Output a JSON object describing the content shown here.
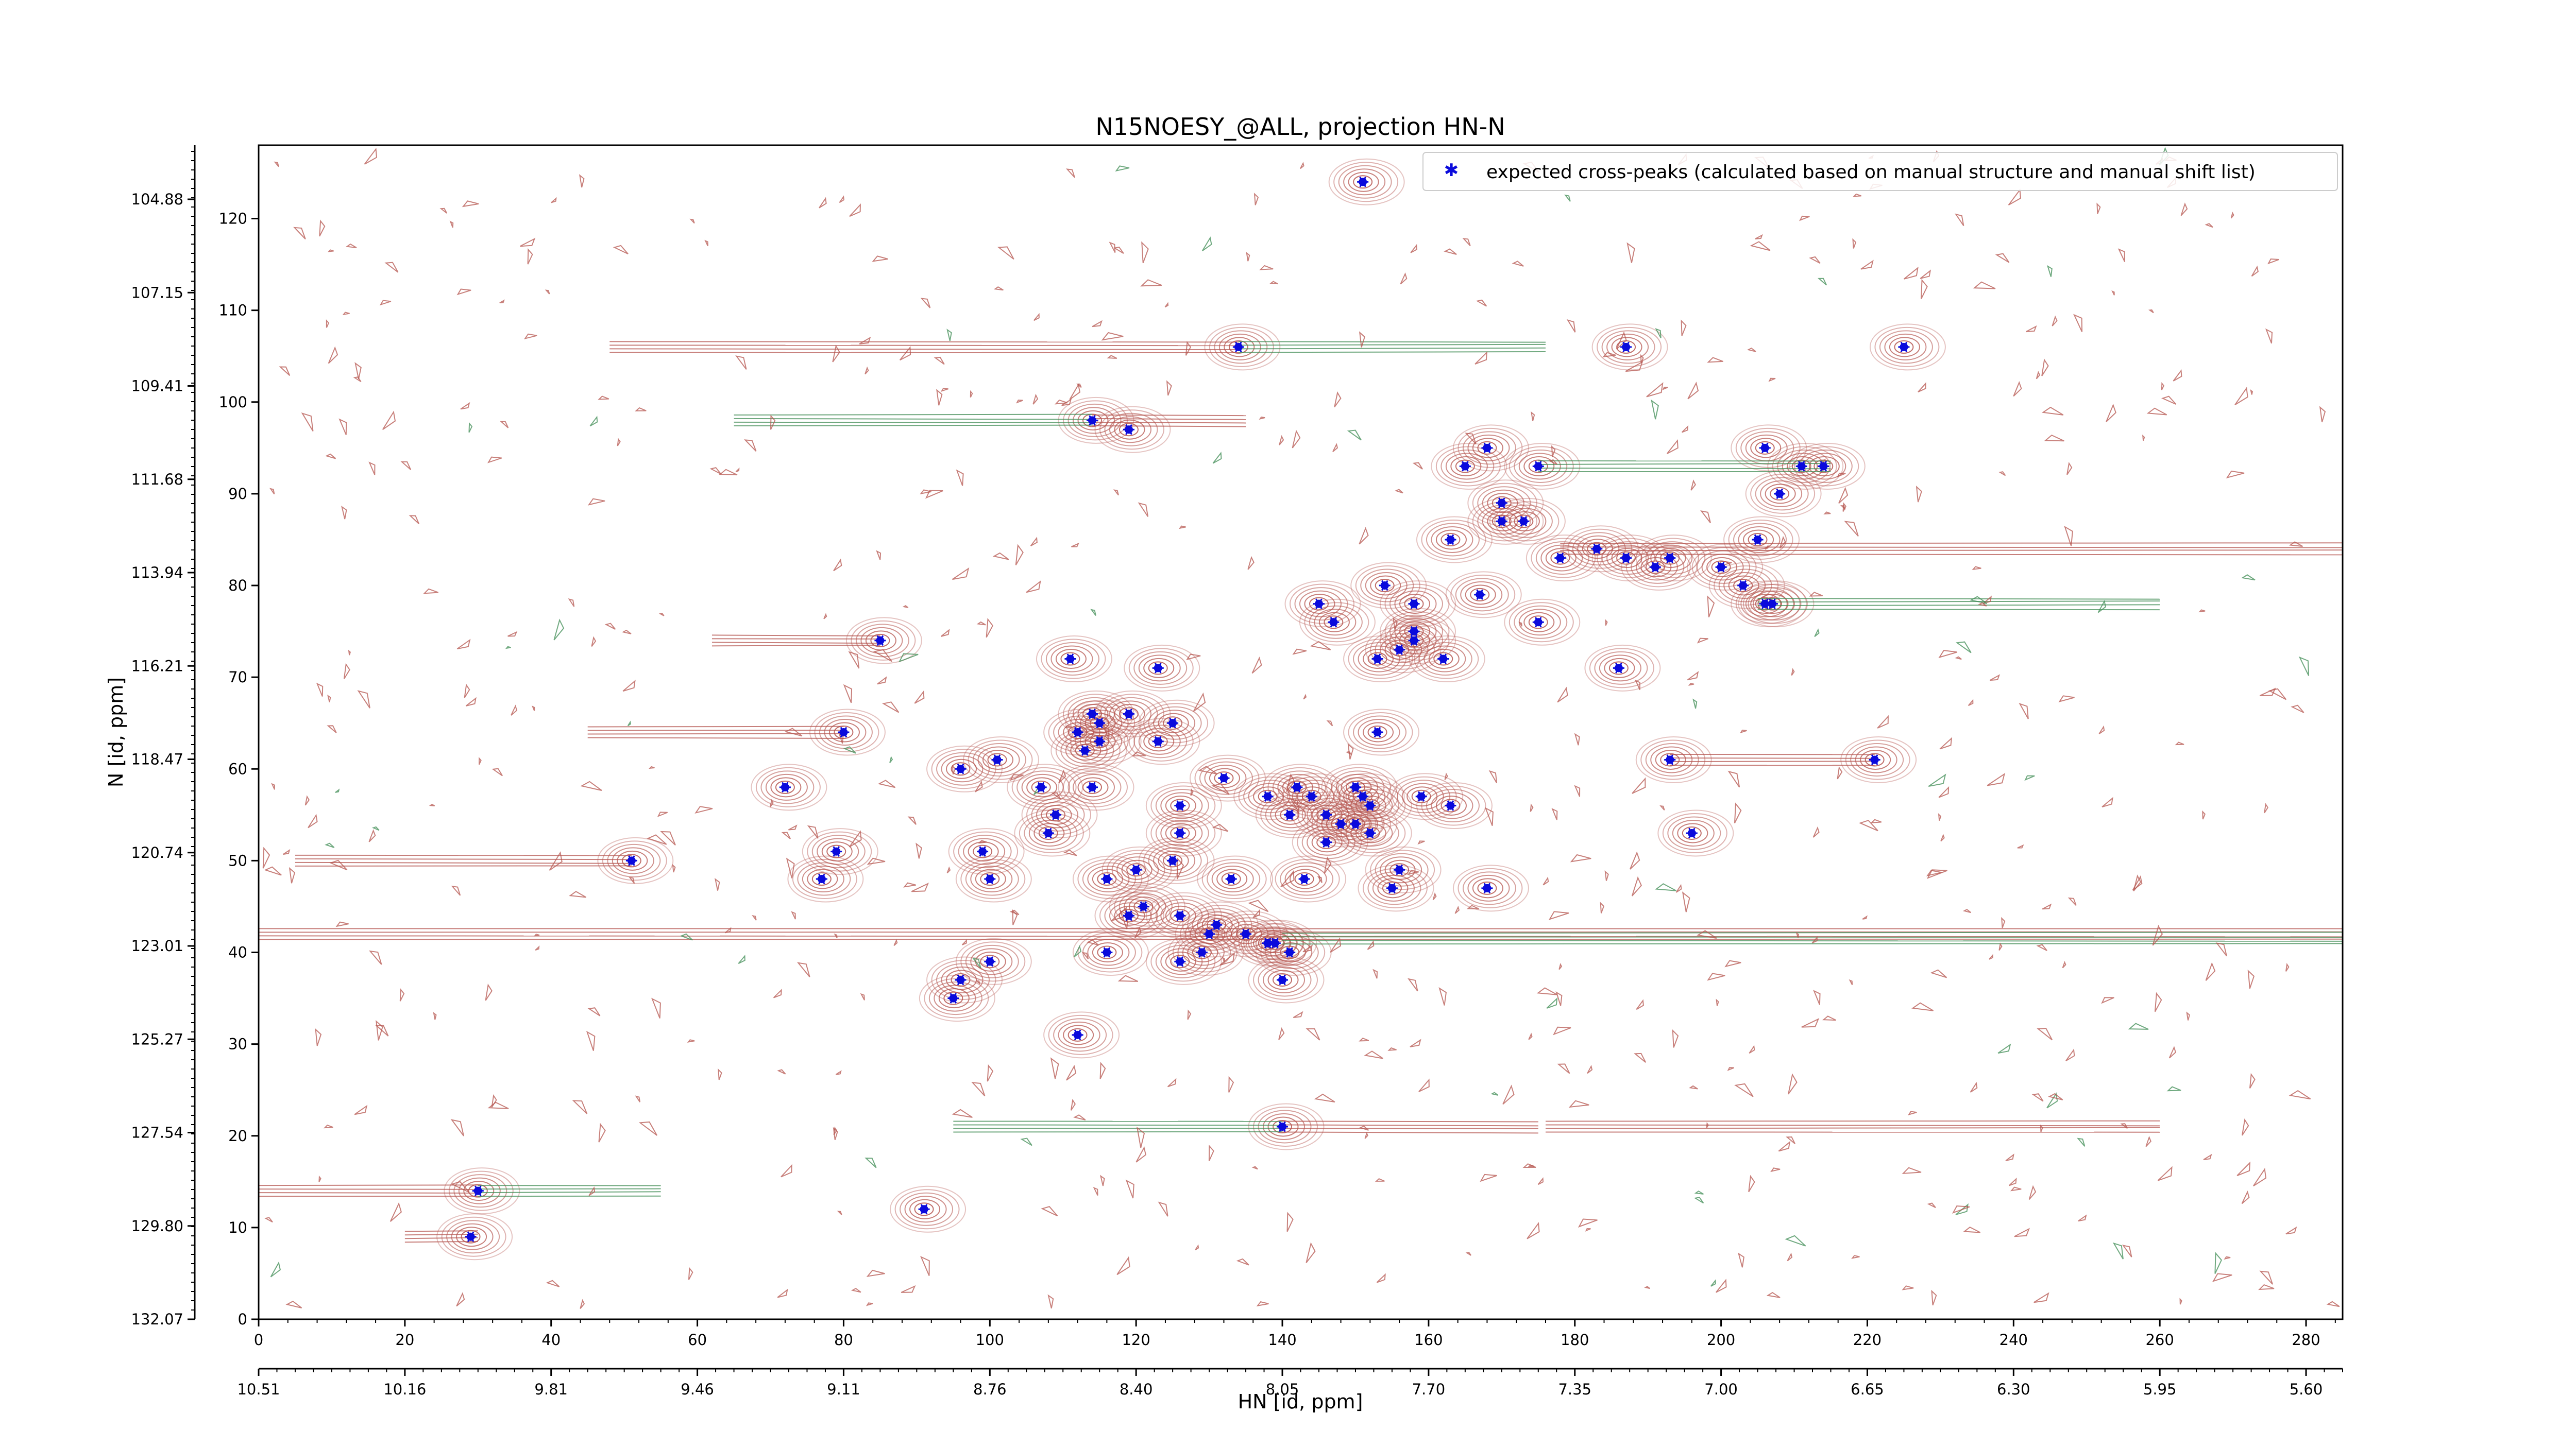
{
  "chart_data": {
    "type": "scatter",
    "title": "N15NOESY_@ALL, projection HN-N",
    "xlabel": "HN [id, ppm]",
    "ylabel": "N [id, ppm]",
    "xlim": [
      0,
      285
    ],
    "ylim": [
      0,
      128
    ],
    "bottom_ticks": [
      "0",
      "20",
      "40",
      "60",
      "80",
      "100",
      "120",
      "140",
      "160",
      "180",
      "200",
      "220",
      "240",
      "260",
      "280"
    ],
    "left_ticks": [
      "0",
      "10",
      "20",
      "30",
      "40",
      "50",
      "60",
      "70",
      "80",
      "90",
      "100",
      "110",
      "120"
    ],
    "top_ppm_ticks": [
      "10.51",
      "10.16",
      "9.81",
      "9.46",
      "9.11",
      "8.76",
      "8.40",
      "8.05",
      "7.70",
      "7.35",
      "7.00",
      "6.65",
      "6.30",
      "5.95",
      "5.60"
    ],
    "left_ppm_ticks": [
      "132.07",
      "129.80",
      "127.54",
      "125.27",
      "123.01",
      "120.74",
      "118.47",
      "116.21",
      "113.94",
      "111.68",
      "109.41",
      "107.15",
      "104.88"
    ],
    "legend": {
      "label": "expected cross-peaks (calculated based on manual structure and manual shift list)",
      "position": "top-right"
    },
    "colors": {
      "positive_contour": "#b5554f",
      "negative_contour": "#3f8c54",
      "peak": "#0a0adc"
    },
    "series": [
      {
        "name": "expected cross-peaks (calculated based on manual structure and manual shift list)",
        "points": [
          [
            151,
            124
          ],
          [
            134,
            106
          ],
          [
            187,
            106
          ],
          [
            225,
            106
          ],
          [
            114,
            98
          ],
          [
            119,
            97
          ],
          [
            168,
            95
          ],
          [
            175,
            93
          ],
          [
            165,
            93
          ],
          [
            206,
            95
          ],
          [
            208,
            90
          ],
          [
            211,
            93
          ],
          [
            214,
            93
          ],
          [
            170,
            89
          ],
          [
            173,
            87
          ],
          [
            170,
            87
          ],
          [
            205,
            85
          ],
          [
            163,
            85
          ],
          [
            183,
            84
          ],
          [
            178,
            83
          ],
          [
            187,
            83
          ],
          [
            191,
            82
          ],
          [
            193,
            83
          ],
          [
            154,
            80
          ],
          [
            200,
            82
          ],
          [
            203,
            80
          ],
          [
            206,
            78
          ],
          [
            207,
            78
          ],
          [
            167,
            79
          ],
          [
            158,
            78
          ],
          [
            145,
            78
          ],
          [
            175,
            76
          ],
          [
            147,
            76
          ],
          [
            158,
            75
          ],
          [
            158,
            74
          ],
          [
            156,
            73
          ],
          [
            162,
            72
          ],
          [
            153,
            72
          ],
          [
            186,
            71
          ],
          [
            85,
            74
          ],
          [
            111,
            72
          ],
          [
            123,
            71
          ],
          [
            119,
            66
          ],
          [
            80,
            64
          ],
          [
            114,
            66
          ],
          [
            115,
            65
          ],
          [
            112,
            64
          ],
          [
            115,
            63
          ],
          [
            113,
            62
          ],
          [
            125,
            65
          ],
          [
            123,
            63
          ],
          [
            153,
            64
          ],
          [
            101,
            61
          ],
          [
            96,
            60
          ],
          [
            193,
            61
          ],
          [
            221,
            61
          ],
          [
            132,
            59
          ],
          [
            142,
            58
          ],
          [
            144,
            57
          ],
          [
            150,
            58
          ],
          [
            152,
            56
          ],
          [
            151,
            57
          ],
          [
            159,
            57
          ],
          [
            163,
            56
          ],
          [
            72,
            58
          ],
          [
            107,
            58
          ],
          [
            114,
            58
          ],
          [
            109,
            55
          ],
          [
            126,
            56
          ],
          [
            126,
            53
          ],
          [
            138,
            57
          ],
          [
            141,
            55
          ],
          [
            146,
            55
          ],
          [
            148,
            54
          ],
          [
            150,
            54
          ],
          [
            152,
            53
          ],
          [
            196,
            53
          ],
          [
            108,
            53
          ],
          [
            146,
            52
          ],
          [
            125,
            50
          ],
          [
            120,
            49
          ],
          [
            116,
            48
          ],
          [
            79,
            51
          ],
          [
            99,
            51
          ],
          [
            100,
            48
          ],
          [
            51,
            50
          ],
          [
            77,
            48
          ],
          [
            133,
            48
          ],
          [
            143,
            48
          ],
          [
            156,
            49
          ],
          [
            155,
            47
          ],
          [
            168,
            47
          ],
          [
            121,
            45
          ],
          [
            119,
            44
          ],
          [
            126,
            44
          ],
          [
            131,
            43
          ],
          [
            130,
            42
          ],
          [
            135,
            42
          ],
          [
            138,
            41
          ],
          [
            139,
            41
          ],
          [
            141,
            40
          ],
          [
            116,
            40
          ],
          [
            129,
            40
          ],
          [
            126,
            39
          ],
          [
            100,
            39
          ],
          [
            96,
            37
          ],
          [
            140,
            37
          ],
          [
            95,
            35
          ],
          [
            112,
            31
          ],
          [
            140,
            21
          ],
          [
            30,
            14
          ],
          [
            91,
            12
          ],
          [
            29,
            9
          ]
        ]
      }
    ]
  }
}
